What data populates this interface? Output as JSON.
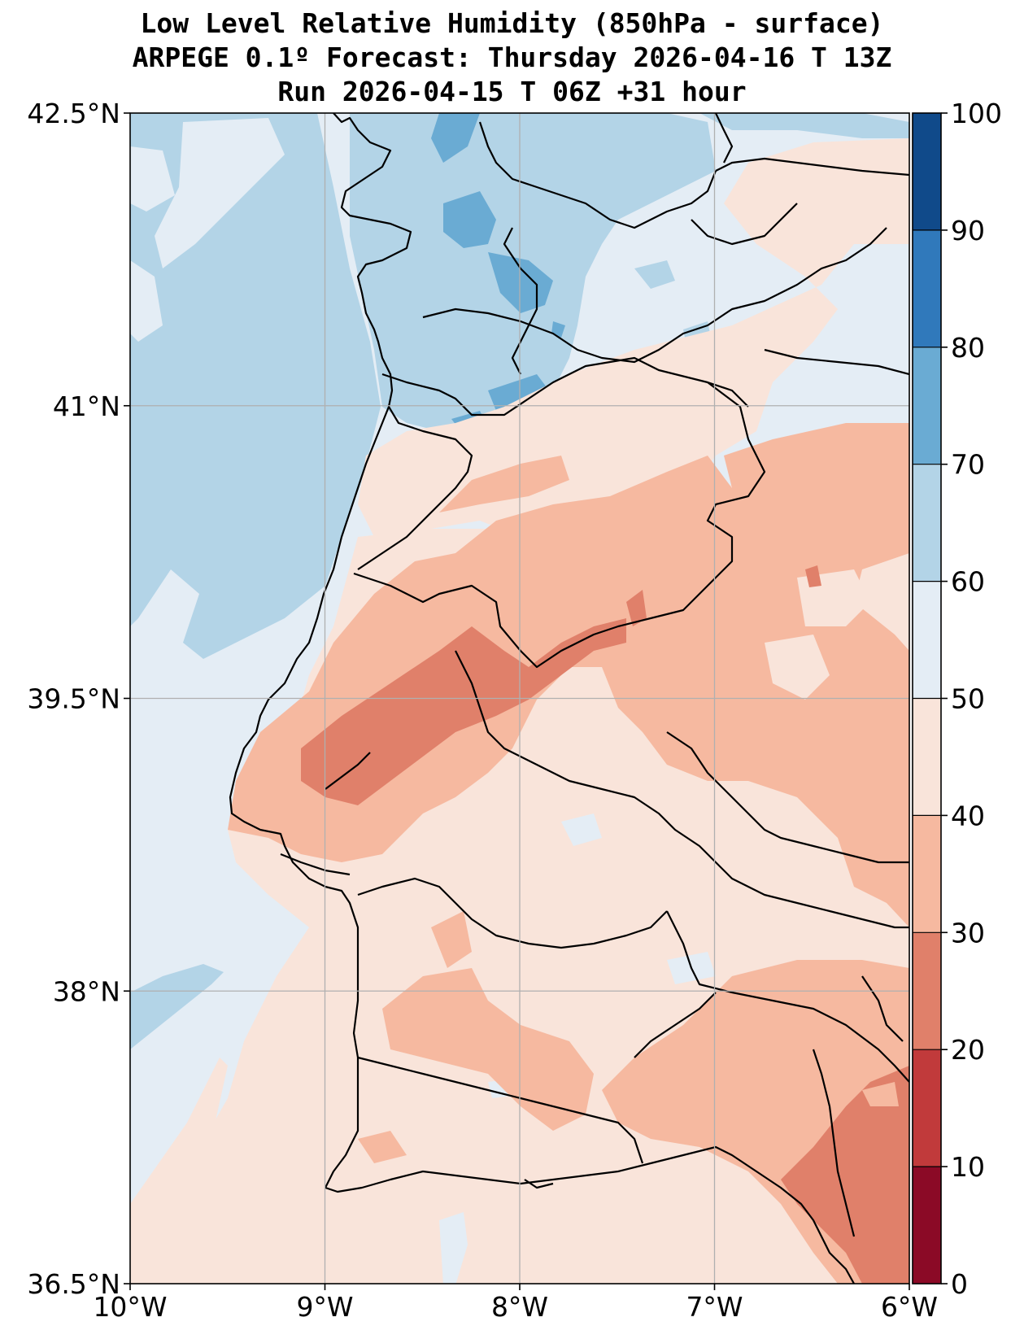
{
  "title": {
    "line1": "Low Level Relative Humidity (850hPa - surface)",
    "line2": "ARPEGE 0.1º Forecast: Thursday 2026-04-16 T 13Z",
    "line3": "Run 2026-04-15 T 06Z +31 hour"
  },
  "map": {
    "lon_range": [
      -10,
      -6
    ],
    "lat_range": [
      36.5,
      42.5
    ],
    "grid": true,
    "x_ticks": [
      {
        "lon": -10,
        "label": "10°W"
      },
      {
        "lon": -9,
        "label": "9°W"
      },
      {
        "lon": -8,
        "label": "8°W"
      },
      {
        "lon": -7,
        "label": "7°W"
      },
      {
        "lon": -6,
        "label": "6°W"
      }
    ],
    "y_ticks": [
      {
        "lat": 42.5,
        "label": "42.5°N"
      },
      {
        "lat": 41,
        "label": "41°N"
      },
      {
        "lat": 39.5,
        "label": "39.5°N"
      },
      {
        "lat": 38,
        "label": "38°N"
      },
      {
        "lat": 36.5,
        "label": "36.5°N"
      }
    ]
  },
  "colorbar": {
    "levels": [
      0,
      10,
      20,
      30,
      40,
      50,
      60,
      70,
      80,
      90,
      100
    ],
    "labels": [
      "0",
      "10",
      "20",
      "30",
      "40",
      "50",
      "60",
      "70",
      "80",
      "90",
      "100"
    ],
    "colors": [
      "#8b0a26",
      "#c13a3b",
      "#e0806a",
      "#f6b9a0",
      "#f9e4da",
      "#e4edf5",
      "#b3d4e7",
      "#6aabd3",
      "#3079bb",
      "#104a8a"
    ]
  },
  "fields": {
    "sea_rh_color": "#b3d4e7",
    "background_rh_color": "#e4edf5"
  }
}
